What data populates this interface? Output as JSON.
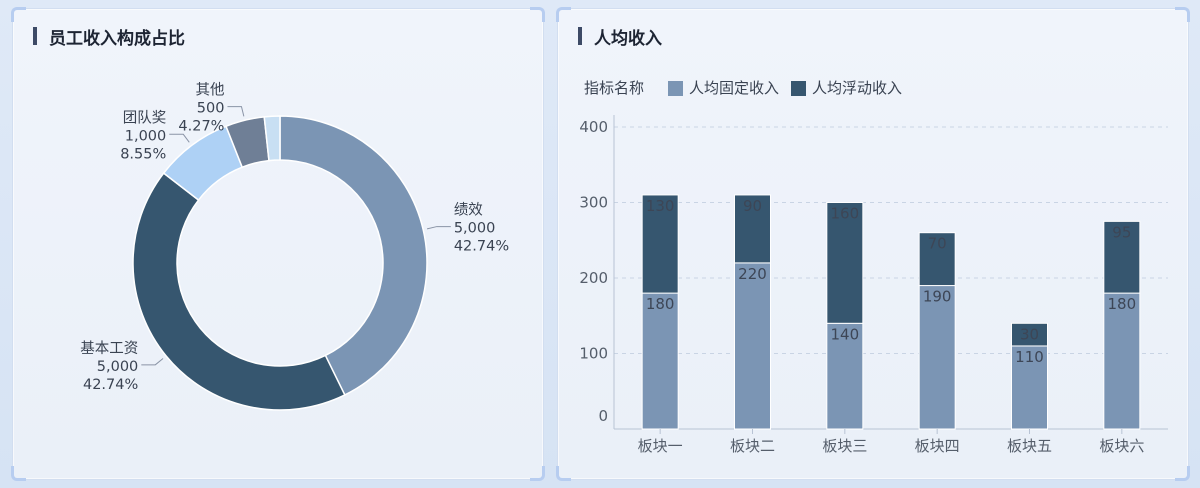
{
  "left_panel": {
    "title": "员工收入构成占比"
  },
  "right_panel": {
    "title": "人均收入"
  },
  "colors": {
    "fixed": "#7b95b4",
    "variable": "#36566f",
    "bonus": "#aed1f5",
    "other": "#6f7f96",
    "misc": "#c8dff3",
    "axis_text": "#555e6b",
    "label_text": "#3a4352"
  },
  "chart_data": [
    {
      "type": "pie",
      "variant": "donut",
      "slices": [
        {
          "label": "绩效",
          "value": 5000,
          "value_text": "5,000",
          "percent": "42.74%",
          "color": "#7b95b4"
        },
        {
          "label": "基本工资",
          "value": 5000,
          "value_text": "5,000",
          "percent": "42.74%",
          "color": "#36566f"
        },
        {
          "label": "团队奖",
          "value": 1000,
          "value_text": "1,000",
          "percent": "8.55%",
          "color": "#aed1f5"
        },
        {
          "label": "其他",
          "value": 500,
          "value_text": "500",
          "percent": "4.27%",
          "color": "#6f7f96"
        },
        {
          "label": "",
          "value": 200,
          "value_text": "",
          "percent": "",
          "color": "#c8dff3"
        }
      ]
    },
    {
      "type": "bar",
      "stacked": true,
      "legend_title": "指标名称",
      "categories": [
        "板块一",
        "板块二",
        "板块三",
        "板块四",
        "板块五",
        "板块六"
      ],
      "series": [
        {
          "name": "人均固定收入",
          "values": [
            180,
            220,
            140,
            190,
            110,
            180
          ],
          "color": "#7b95b4"
        },
        {
          "name": "人均浮动收入",
          "values": [
            130,
            90,
            160,
            70,
            30,
            95
          ],
          "color": "#36566f"
        }
      ],
      "yticks": [
        0,
        100,
        200,
        300,
        400
      ],
      "ylim": [
        0,
        400
      ],
      "grid": true,
      "legend_position": "top-left"
    }
  ]
}
